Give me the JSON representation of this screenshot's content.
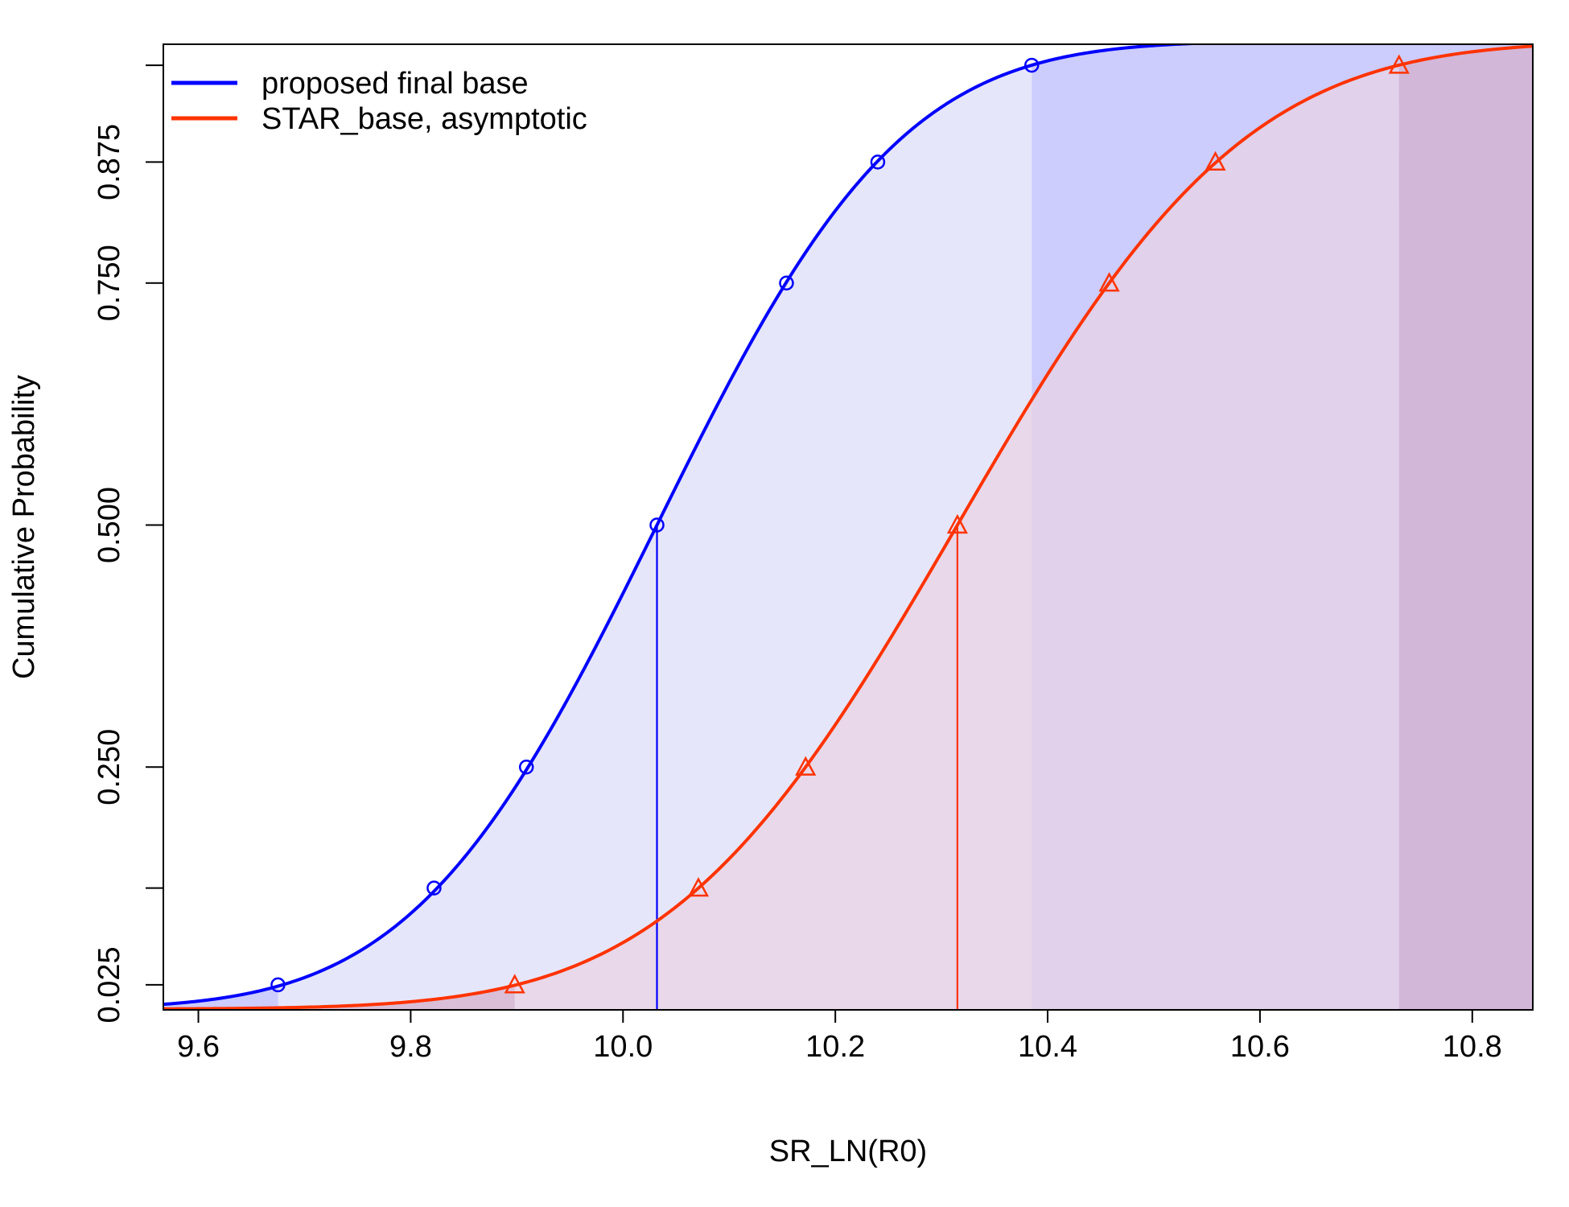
{
  "chart_data": {
    "type": "line",
    "title": "",
    "xlabel": "SR_LN(R0)",
    "ylabel": "Cumulative Probability",
    "xlim": [
      9.567,
      10.857
    ],
    "ylim": [
      0.0,
      1.0
    ],
    "x_ticks": [
      9.6,
      9.8,
      10.0,
      10.2,
      10.4,
      10.6,
      10.8
    ],
    "x_tick_labels": [
      "9.6",
      "9.8",
      "10.0",
      "10.2",
      "10.4",
      "10.6",
      "10.8"
    ],
    "y_ticks": [
      0.025,
      0.125,
      0.25,
      0.5,
      0.75,
      0.875,
      0.975
    ],
    "y_tick_labels": [
      "0.025",
      "",
      "0.250",
      "0.500",
      "0.750",
      "0.875",
      ""
    ],
    "grid": false,
    "legend_position": "top-left",
    "series": [
      {
        "name": "proposed final base",
        "color": "#0000ff",
        "fill_color": "#e6e6fb",
        "fill_outer_color": "#ccccfd",
        "marker": "circle",
        "distribution": "normal",
        "mean": 10.032,
        "sd": 0.18,
        "quantile_probs": [
          0.025,
          0.125,
          0.25,
          0.5,
          0.75,
          0.875,
          0.975
        ],
        "quantile_values": [
          9.675,
          9.822,
          9.909,
          10.032,
          10.154,
          10.24,
          10.385
        ],
        "median": 10.032
      },
      {
        "name": "STAR_base, asymptotic",
        "color": "#ff3300",
        "fill_color": "#e9d3e3",
        "fill_outer_color": "#d6aecb",
        "marker": "triangle",
        "distribution": "normal",
        "mean": 10.315,
        "sd": 0.212,
        "quantile_probs": [
          0.025,
          0.125,
          0.25,
          0.5,
          0.75,
          0.875,
          0.975
        ],
        "quantile_values": [
          9.898,
          10.071,
          10.172,
          10.315,
          10.458,
          10.558,
          10.731
        ],
        "median": 10.315
      }
    ]
  }
}
